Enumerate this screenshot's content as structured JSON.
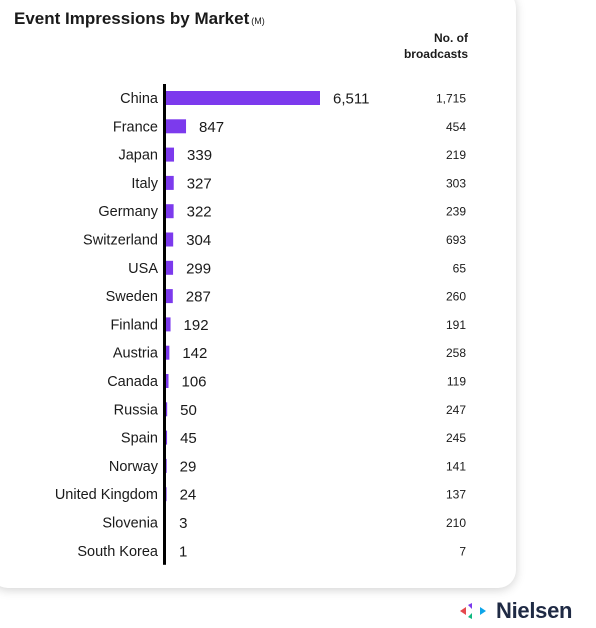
{
  "title": "Event Impressions by Market",
  "title_unit": "(M)",
  "broadcasts_header_line1": "No. of",
  "broadcasts_header_line2": "broadcasts",
  "brand": {
    "name": "Nielsen",
    "bar_color": "#7c3aed"
  },
  "chart_data": {
    "type": "bar",
    "orientation": "horizontal",
    "categories": [
      "China",
      "France",
      "Japan",
      "Italy",
      "Germany",
      "Switzerland",
      "USA",
      "Sweden",
      "Finland",
      "Austria",
      "Canada",
      "Russia",
      "Spain",
      "Norway",
      "United Kingdom",
      "Slovenia",
      "South Korea"
    ],
    "series": [
      {
        "values": [
          6511,
          847,
          339,
          327,
          322,
          304,
          299,
          287,
          192,
          142,
          106,
          50,
          45,
          29,
          24,
          3,
          1
        ]
      }
    ],
    "value_labels": [
      "6,511",
      "847",
      "339",
      "327",
      "322",
      "304",
      "299",
      "287",
      "192",
      "142",
      "106",
      "50",
      "45",
      "29",
      "24",
      "3",
      "1"
    ],
    "broadcasts": [
      "1,715",
      "454",
      "219",
      "303",
      "239",
      "693",
      "65",
      "260",
      "191",
      "258",
      "119",
      "247",
      "245",
      "141",
      "137",
      "210",
      "7"
    ],
    "xlim": [
      0,
      6511
    ]
  }
}
